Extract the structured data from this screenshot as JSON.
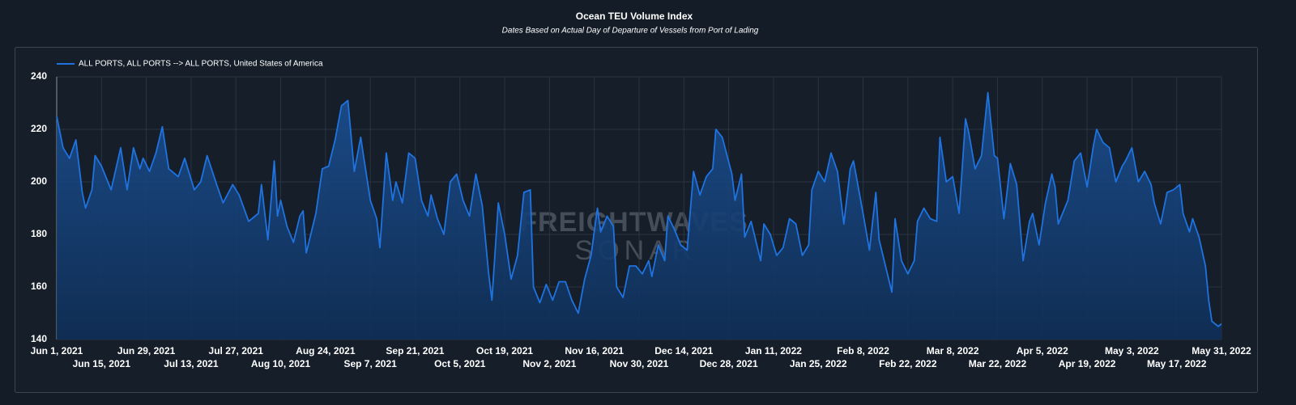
{
  "chart_data": {
    "type": "line",
    "title": "Ocean TEU Volume Index",
    "subtitle": "Dates Based on Actual Day of Departure of Vessels from Port of Lading",
    "watermark": [
      "FREIGHTWAVES",
      "SONAR"
    ],
    "legend": "top-left",
    "grid": true,
    "x": [
      "2021-06-01",
      "2021-06-03",
      "2021-06-05",
      "2021-06-07",
      "2021-06-09",
      "2021-06-10",
      "2021-06-12",
      "2021-06-13",
      "2021-06-15",
      "2021-06-17",
      "2021-06-18",
      "2021-06-21",
      "2021-06-23",
      "2021-06-25",
      "2021-06-27",
      "2021-06-28",
      "2021-06-30",
      "2021-07-02",
      "2021-07-04",
      "2021-07-06",
      "2021-07-09",
      "2021-07-11",
      "2021-07-14",
      "2021-07-16",
      "2021-07-18",
      "2021-07-21",
      "2021-07-23",
      "2021-07-26",
      "2021-07-28",
      "2021-07-31",
      "2021-08-03",
      "2021-08-04",
      "2021-08-06",
      "2021-08-08",
      "2021-08-09",
      "2021-08-10",
      "2021-08-12",
      "2021-08-14",
      "2021-08-16",
      "2021-08-17",
      "2021-08-18",
      "2021-08-21",
      "2021-08-23",
      "2021-08-25",
      "2021-08-27",
      "2021-08-29",
      "2021-08-31",
      "2021-09-02",
      "2021-09-04",
      "2021-09-07",
      "2021-09-09",
      "2021-09-10",
      "2021-09-12",
      "2021-09-14",
      "2021-09-15",
      "2021-09-17",
      "2021-09-19",
      "2021-09-21",
      "2021-09-23",
      "2021-09-25",
      "2021-09-26",
      "2021-09-28",
      "2021-09-30",
      "2021-10-02",
      "2021-10-04",
      "2021-10-06",
      "2021-10-08",
      "2021-10-10",
      "2021-10-12",
      "2021-10-14",
      "2021-10-15",
      "2021-10-17",
      "2021-10-19",
      "2021-10-21",
      "2021-10-23",
      "2021-10-25",
      "2021-10-27",
      "2021-10-28",
      "2021-10-30",
      "2021-11-01",
      "2021-11-03",
      "2021-11-05",
      "2021-11-07",
      "2021-11-09",
      "2021-11-11",
      "2021-11-13",
      "2021-11-15",
      "2021-11-17",
      "2021-11-18",
      "2021-11-20",
      "2021-11-22",
      "2021-11-23",
      "2021-11-25",
      "2021-11-27",
      "2021-11-29",
      "2021-12-01",
      "2021-12-03",
      "2021-12-04",
      "2021-12-06",
      "2021-12-08",
      "2021-12-09",
      "2021-12-11",
      "2021-12-13",
      "2021-12-15",
      "2021-12-17",
      "2021-12-19",
      "2021-12-21",
      "2021-12-23",
      "2021-12-24",
      "2021-12-26",
      "2021-12-29",
      "2021-12-30",
      "2022-01-01",
      "2022-01-02",
      "2022-01-04",
      "2022-01-07",
      "2022-01-08",
      "2022-01-10",
      "2022-01-12",
      "2022-01-14",
      "2022-01-16",
      "2022-01-18",
      "2022-01-20",
      "2022-01-22",
      "2022-01-23",
      "2022-01-25",
      "2022-01-27",
      "2022-01-29",
      "2022-01-31",
      "2022-02-02",
      "2022-02-04",
      "2022-02-05",
      "2022-02-08",
      "2022-02-10",
      "2022-02-12",
      "2022-02-13",
      "2022-02-15",
      "2022-02-17",
      "2022-02-18",
      "2022-02-20",
      "2022-02-22",
      "2022-02-24",
      "2022-02-25",
      "2022-02-27",
      "2022-03-01",
      "2022-03-03",
      "2022-03-04",
      "2022-03-06",
      "2022-03-08",
      "2022-03-10",
      "2022-03-12",
      "2022-03-13",
      "2022-03-15",
      "2022-03-17",
      "2022-03-19",
      "2022-03-21",
      "2022-03-22",
      "2022-03-24",
      "2022-03-26",
      "2022-03-28",
      "2022-03-30",
      "2022-04-01",
      "2022-04-02",
      "2022-04-04",
      "2022-04-06",
      "2022-04-08",
      "2022-04-09",
      "2022-04-10",
      "2022-04-13",
      "2022-04-15",
      "2022-04-17",
      "2022-04-19",
      "2022-04-21",
      "2022-04-22",
      "2022-04-24",
      "2022-04-26",
      "2022-04-28",
      "2022-04-30",
      "2022-05-01",
      "2022-05-03",
      "2022-05-05",
      "2022-05-07",
      "2022-05-09",
      "2022-05-10",
      "2022-05-12",
      "2022-05-14",
      "2022-05-16",
      "2022-05-18",
      "2022-05-19",
      "2022-05-21",
      "2022-05-22",
      "2022-05-24",
      "2022-05-26",
      "2022-05-27",
      "2022-05-28",
      "2022-05-30",
      "2022-05-31"
    ],
    "series": [
      {
        "name": "ALL PORTS, ALL PORTS --> ALL PORTS, United States of America",
        "color": "#1f73e0",
        "values": [
          225,
          213,
          209,
          216,
          196,
          190,
          197,
          210,
          206,
          200,
          197,
          213,
          197,
          213,
          205,
          209,
          204,
          211,
          221,
          205,
          202,
          209,
          197,
          200,
          210,
          199,
          192,
          199,
          195,
          185,
          188,
          199,
          178,
          208,
          187,
          193,
          183,
          177,
          187,
          189,
          173,
          188,
          205,
          206,
          216,
          229,
          231,
          204,
          217,
          193,
          186,
          175,
          211,
          193,
          200,
          192,
          211,
          209,
          193,
          187,
          195,
          186,
          180,
          200,
          203,
          193,
          187,
          203,
          191,
          165,
          155,
          192,
          180,
          163,
          172,
          196,
          197,
          160,
          154,
          161,
          155,
          162,
          162,
          155,
          150,
          163,
          172,
          190,
          181,
          187,
          183,
          160,
          156,
          168,
          168,
          165,
          170,
          164,
          176,
          170,
          187,
          182,
          176,
          174,
          204,
          195,
          202,
          205,
          220,
          217,
          203,
          193,
          203,
          179,
          185,
          170,
          184,
          180,
          172,
          175,
          186,
          184,
          172,
          176,
          197,
          204,
          200,
          211,
          204,
          184,
          205,
          208,
          188,
          174,
          196,
          178,
          168,
          158,
          186,
          170,
          165,
          170,
          185,
          190,
          186,
          185,
          217,
          200,
          202,
          188,
          224,
          219,
          205,
          210,
          234,
          210,
          209,
          186,
          207,
          199,
          170,
          185,
          188,
          176,
          192,
          203,
          198,
          184,
          193,
          208,
          211,
          198,
          214,
          220,
          215,
          213,
          200,
          206,
          208,
          213,
          200,
          204,
          199,
          192,
          184,
          196,
          197,
          199,
          188,
          181,
          186,
          179,
          168,
          155,
          147,
          145,
          146
        ]
      }
    ],
    "xlim": [
      "2021-06-01",
      "2022-05-31"
    ],
    "xticks": [
      {
        "value": "2021-06-01",
        "label": "Jun 1, 2021"
      },
      {
        "value": "2021-06-15",
        "label": "Jun 15, 2021"
      },
      {
        "value": "2021-06-29",
        "label": "Jun 29, 2021"
      },
      {
        "value": "2021-07-13",
        "label": "Jul 13, 2021"
      },
      {
        "value": "2021-07-27",
        "label": "Jul 27, 2021"
      },
      {
        "value": "2021-08-10",
        "label": "Aug 10, 2021"
      },
      {
        "value": "2021-08-24",
        "label": "Aug 24, 2021"
      },
      {
        "value": "2021-09-07",
        "label": "Sep 7, 2021"
      },
      {
        "value": "2021-09-21",
        "label": "Sep 21, 2021"
      },
      {
        "value": "2021-10-05",
        "label": "Oct 5, 2021"
      },
      {
        "value": "2021-10-19",
        "label": "Oct 19, 2021"
      },
      {
        "value": "2021-11-02",
        "label": "Nov 2, 2021"
      },
      {
        "value": "2021-11-16",
        "label": "Nov 16, 2021"
      },
      {
        "value": "2021-11-30",
        "label": "Nov 30, 2021"
      },
      {
        "value": "2021-12-14",
        "label": "Dec 14, 2021"
      },
      {
        "value": "2021-12-28",
        "label": "Dec 28, 2021"
      },
      {
        "value": "2022-01-11",
        "label": "Jan 11, 2022"
      },
      {
        "value": "2022-01-25",
        "label": "Jan 25, 2022"
      },
      {
        "value": "2022-02-08",
        "label": "Feb 8, 2022"
      },
      {
        "value": "2022-02-22",
        "label": "Feb 22, 2022"
      },
      {
        "value": "2022-03-08",
        "label": "Mar 8, 2022"
      },
      {
        "value": "2022-03-22",
        "label": "Mar 22, 2022"
      },
      {
        "value": "2022-04-05",
        "label": "Apr 5, 2022"
      },
      {
        "value": "2022-04-19",
        "label": "Apr 19, 2022"
      },
      {
        "value": "2022-05-03",
        "label": "May 3, 2022"
      },
      {
        "value": "2022-05-17",
        "label": "May 17, 2022"
      },
      {
        "value": "2022-05-31",
        "label": "May 31, 2022"
      }
    ],
    "ylim": [
      140,
      240
    ],
    "yticks": [
      140,
      160,
      180,
      200,
      220,
      240
    ]
  }
}
